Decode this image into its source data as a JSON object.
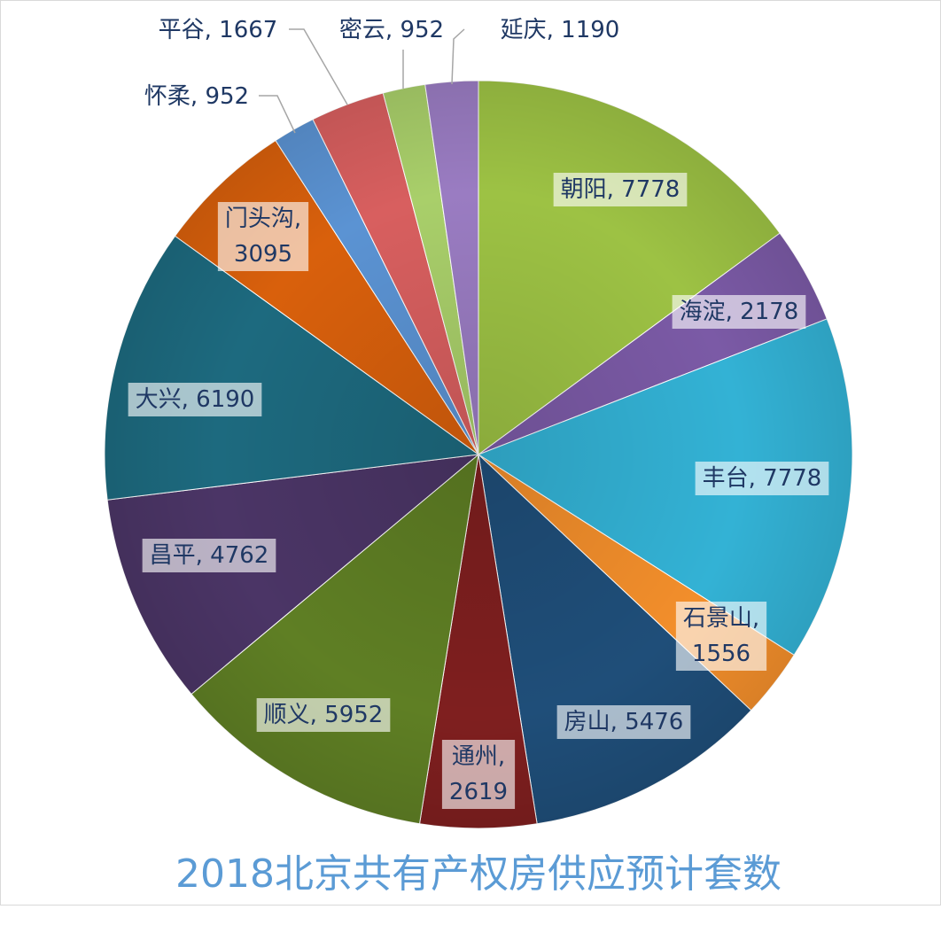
{
  "chart_data": {
    "type": "pie",
    "title": "2018北京共有产权房供应预计套数",
    "label_separator": ", ",
    "slices": [
      {
        "label": "朝阳",
        "value": 7778,
        "color": "#9dc244"
      },
      {
        "label": "海淀",
        "value": 2178,
        "color": "#7b5aa6"
      },
      {
        "label": "丰台",
        "value": 7778,
        "color": "#33b2d5"
      },
      {
        "label": "石景山",
        "value": 1556,
        "color": "#f28e2b"
      },
      {
        "label": "房山",
        "value": 5476,
        "color": "#1f4e79"
      },
      {
        "label": "通州",
        "value": 2619,
        "color": "#7f1f1f"
      },
      {
        "label": "顺义",
        "value": 5952,
        "color": "#5f7f24"
      },
      {
        "label": "昌平",
        "value": 4762,
        "color": "#4b3566"
      },
      {
        "label": "大兴",
        "value": 6190,
        "color": "#1d6a7f"
      },
      {
        "label": "门头沟",
        "value": 3095,
        "color": "#d9600c"
      },
      {
        "label": "怀柔",
        "value": 952,
        "color": "#5b93d3"
      },
      {
        "label": "平谷",
        "value": 1667,
        "color": "#d85f5f"
      },
      {
        "label": "密云",
        "value": 952,
        "color": "#a9cf6a"
      },
      {
        "label": "延庆",
        "value": 1190,
        "color": "#9a7cc2"
      }
    ]
  }
}
